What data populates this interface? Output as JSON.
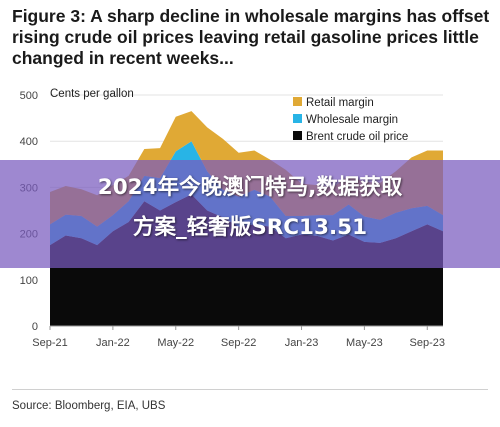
{
  "figure": {
    "title": "Figure 3: A sharp decline in wholesale margins has offset rising crude oil prices leaving retail gasoline prices little changed in recent weeks...",
    "source": "Source: Bloomberg, EIA, UBS"
  },
  "overlay": {
    "line1": "2024年今晚澳门特马,数据获取",
    "line2": "方案_轻奢版SRC13.51"
  },
  "colors": {
    "retail": "#e0a935",
    "wholesale": "#28b4e6",
    "crude": "#0a0a0a",
    "background": "#ffffff",
    "overlay": "#785abe"
  },
  "chart_data": {
    "type": "area",
    "stacked": true,
    "ylabel": "Cents per gallon",
    "ylim": [
      0,
      500
    ],
    "yticks": [
      0,
      100,
      200,
      300,
      400,
      500
    ],
    "x_tick_labels": [
      "Sep-21",
      "Jan-22",
      "May-22",
      "Sep-22",
      "Jan-23",
      "May-23",
      "Sep-23"
    ],
    "x_tick_index": [
      0,
      4,
      8,
      12,
      16,
      20,
      24
    ],
    "legend_position": "top-right",
    "x": [
      "Sep-21",
      "Oct-21",
      "Nov-21",
      "Dec-21",
      "Jan-22",
      "Feb-22",
      "Mar-22",
      "Apr-22",
      "May-22",
      "Jun-22",
      "Jul-22",
      "Aug-22",
      "Sep-22",
      "Oct-22",
      "Nov-22",
      "Dec-22",
      "Jan-23",
      "Feb-23",
      "Mar-23",
      "Apr-23",
      "May-23",
      "Jun-23",
      "Jul-23",
      "Aug-23",
      "Sep-23",
      "Oct-23"
    ],
    "series": [
      {
        "name": "Brent crude oil price",
        "values": [
          175,
          196,
          190,
          175,
          205,
          225,
          270,
          250,
          268,
          285,
          250,
          235,
          215,
          220,
          215,
          190,
          198,
          195,
          185,
          198,
          182,
          180,
          190,
          205,
          220,
          205
        ]
      },
      {
        "name": "Wholesale margin",
        "values": [
          45,
          45,
          48,
          40,
          35,
          45,
          55,
          70,
          110,
          115,
          85,
          60,
          65,
          75,
          65,
          48,
          40,
          45,
          55,
          65,
          55,
          50,
          55,
          50,
          40,
          35
        ]
      },
      {
        "name": "Retail margin",
        "values": [
          70,
          62,
          58,
          68,
          65,
          55,
          58,
          65,
          75,
          65,
          95,
          110,
          95,
          85,
          80,
          100,
          70,
          65,
          60,
          62,
          75,
          80,
          90,
          110,
          120,
          140
        ]
      }
    ]
  }
}
